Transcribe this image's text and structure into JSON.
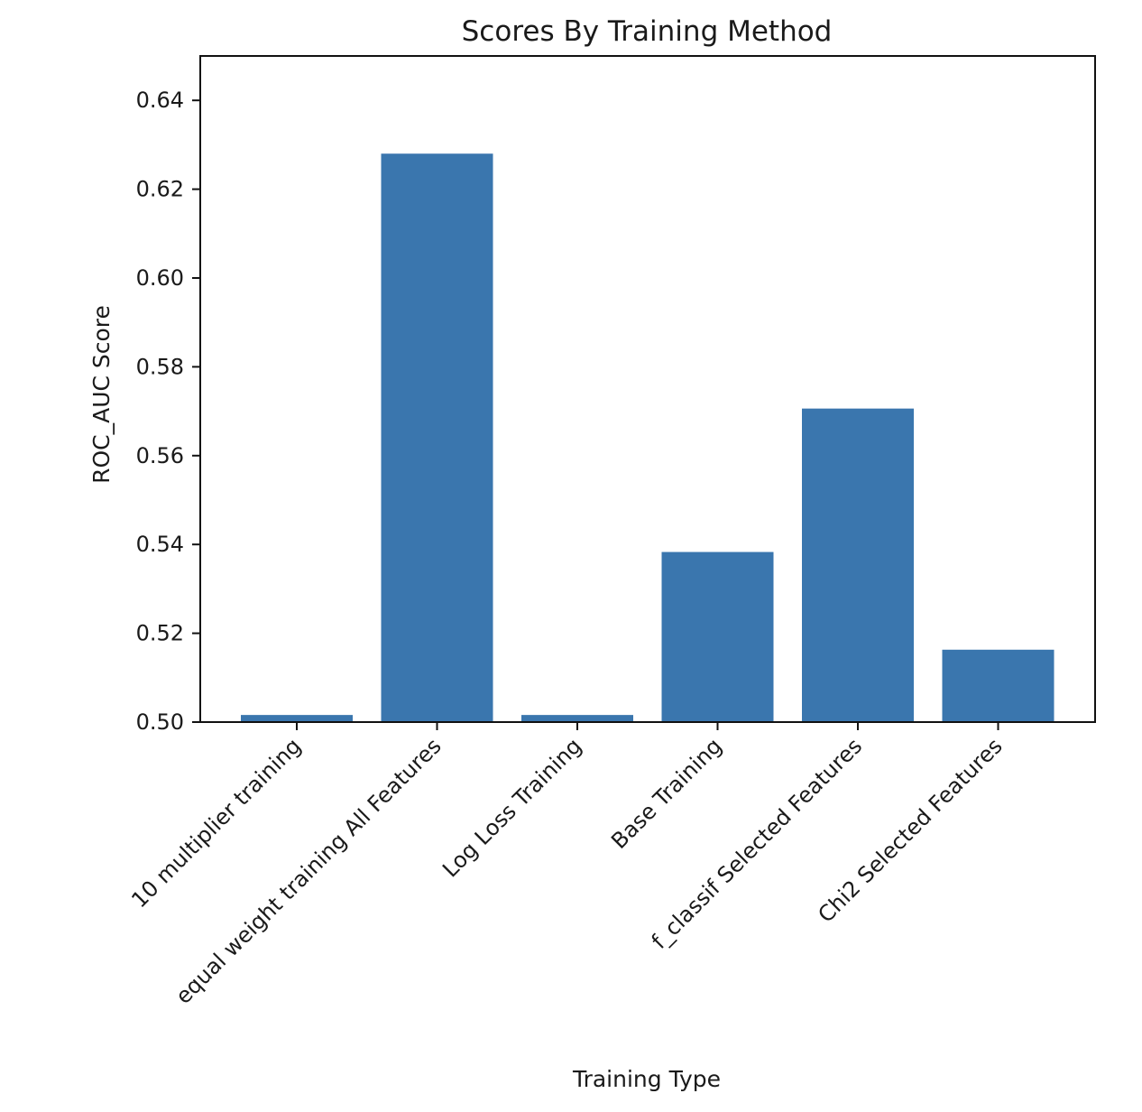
{
  "chart_data": {
    "type": "bar",
    "title": "Scores By Training Method",
    "xlabel": "Training Type",
    "ylabel": "ROC_AUC Score",
    "categories": [
      "10 multiplier training",
      "equal weight training All Features",
      "Log Loss Training",
      "Base Training",
      "f_classif Selected Features",
      "Chi2 Selected Features"
    ],
    "values": [
      0.5016,
      0.628,
      0.5016,
      0.5383,
      0.5706,
      0.5163
    ],
    "ylim": [
      0.5,
      0.65
    ],
    "yticks": [
      0.5,
      0.52,
      0.54,
      0.56,
      0.58,
      0.6,
      0.62,
      0.64
    ],
    "ytick_labels": [
      "0.50",
      "0.52",
      "0.54",
      "0.56",
      "0.58",
      "0.60",
      "0.62",
      "0.64"
    ],
    "bar_color": "#3a76ae",
    "grid": false,
    "legend": false
  }
}
